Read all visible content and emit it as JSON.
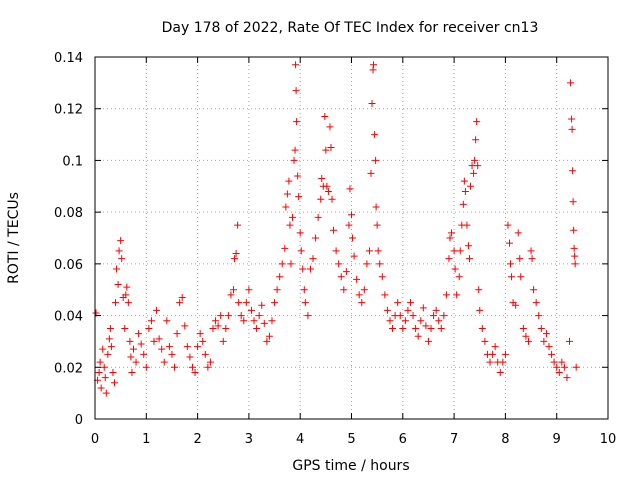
{
  "chart_data": {
    "type": "scatter",
    "title": "Day 178 of 2022, Rate Of TEC Index for receiver cn13",
    "xlabel": "GPS time / hours",
    "ylabel": "ROTI / TECUs",
    "xlim": [
      0,
      10
    ],
    "ylim": [
      0,
      0.14
    ],
    "xticks": [
      0,
      1,
      2,
      3,
      4,
      5,
      6,
      7,
      8,
      9,
      10
    ],
    "yticks": [
      0,
      0.02,
      0.04,
      0.06,
      0.08,
      0.1,
      0.12,
      0.14
    ],
    "xtick_labels": [
      "0",
      "1",
      "2",
      "3",
      "4",
      "5",
      "6",
      "7",
      "8",
      "9",
      "10"
    ],
    "ytick_labels": [
      "0",
      "0.02",
      "0.04",
      "0.06",
      "0.08",
      "0.1",
      "0.12",
      "0.14"
    ],
    "grid": true,
    "marker": "+",
    "color": "#ff0000",
    "series": [
      {
        "name": "ROTI",
        "points": [
          [
            0.02,
            0.041
          ],
          [
            0.05,
            0.015
          ],
          [
            0.08,
            0.018
          ],
          [
            0.1,
            0.022
          ],
          [
            0.12,
            0.012
          ],
          [
            0.15,
            0.027
          ],
          [
            0.18,
            0.02
          ],
          [
            0.2,
            0.016
          ],
          [
            0.22,
            0.01
          ],
          [
            0.25,
            0.025
          ],
          [
            0.28,
            0.031
          ],
          [
            0.3,
            0.035
          ],
          [
            0.32,
            0.028
          ],
          [
            0.35,
            0.018
          ],
          [
            0.38,
            0.014
          ],
          [
            0.4,
            0.045
          ],
          [
            0.42,
            0.058
          ],
          [
            0.45,
            0.052
          ],
          [
            0.47,
            0.065
          ],
          [
            0.5,
            0.069
          ],
          [
            0.52,
            0.062
          ],
          [
            0.55,
            0.047
          ],
          [
            0.58,
            0.035
          ],
          [
            0.6,
            0.048
          ],
          [
            0.62,
            0.051
          ],
          [
            0.65,
            0.045
          ],
          [
            0.68,
            0.03
          ],
          [
            0.7,
            0.024
          ],
          [
            0.72,
            0.018
          ],
          [
            0.75,
            0.027
          ],
          [
            0.8,
            0.022
          ],
          [
            0.85,
            0.033
          ],
          [
            0.9,
            0.029
          ],
          [
            0.95,
            0.025
          ],
          [
            1.0,
            0.02
          ],
          [
            1.05,
            0.035
          ],
          [
            1.1,
            0.038
          ],
          [
            1.15,
            0.03
          ],
          [
            1.2,
            0.042
          ],
          [
            1.25,
            0.031
          ],
          [
            1.3,
            0.027
          ],
          [
            1.35,
            0.022
          ],
          [
            1.4,
            0.038
          ],
          [
            1.45,
            0.028
          ],
          [
            1.5,
            0.025
          ],
          [
            1.55,
            0.02
          ],
          [
            1.6,
            0.033
          ],
          [
            1.65,
            0.045
          ],
          [
            1.7,
            0.047
          ],
          [
            1.75,
            0.036
          ],
          [
            1.8,
            0.028
          ],
          [
            1.85,
            0.024
          ],
          [
            1.9,
            0.02
          ],
          [
            1.95,
            0.018
          ],
          [
            2.0,
            0.028
          ],
          [
            2.05,
            0.033
          ],
          [
            2.1,
            0.03
          ],
          [
            2.15,
            0.025
          ],
          [
            2.2,
            0.02
          ],
          [
            2.25,
            0.022
          ],
          [
            2.3,
            0.035
          ],
          [
            2.35,
            0.038
          ],
          [
            2.4,
            0.036
          ],
          [
            2.45,
            0.04
          ],
          [
            2.5,
            0.03
          ],
          [
            2.55,
            0.035
          ],
          [
            2.6,
            0.04
          ],
          [
            2.65,
            0.048
          ],
          [
            2.7,
            0.05
          ],
          [
            2.72,
            0.062
          ],
          [
            2.75,
            0.064
          ],
          [
            2.78,
            0.075
          ],
          [
            2.8,
            0.045
          ],
          [
            2.85,
            0.04
          ],
          [
            2.9,
            0.038
          ],
          [
            2.95,
            0.045
          ],
          [
            3.0,
            0.05
          ],
          [
            3.05,
            0.042
          ],
          [
            3.1,
            0.038
          ],
          [
            3.15,
            0.035
          ],
          [
            3.2,
            0.04
          ],
          [
            3.25,
            0.044
          ],
          [
            3.3,
            0.037
          ],
          [
            3.35,
            0.03
          ],
          [
            3.4,
            0.032
          ],
          [
            3.45,
            0.038
          ],
          [
            3.5,
            0.045
          ],
          [
            3.55,
            0.05
          ],
          [
            3.6,
            0.055
          ],
          [
            3.65,
            0.06
          ],
          [
            3.7,
            0.066
          ],
          [
            3.72,
            0.082
          ],
          [
            3.75,
            0.087
          ],
          [
            3.78,
            0.092
          ],
          [
            3.8,
            0.075
          ],
          [
            3.82,
            0.06
          ],
          [
            3.85,
            0.078
          ],
          [
            3.88,
            0.1
          ],
          [
            3.9,
            0.104
          ],
          [
            3.91,
            0.137
          ],
          [
            3.92,
            0.127
          ],
          [
            3.93,
            0.115
          ],
          [
            3.95,
            0.094
          ],
          [
            3.97,
            0.086
          ],
          [
            4.0,
            0.072
          ],
          [
            4.02,
            0.065
          ],
          [
            4.05,
            0.058
          ],
          [
            4.08,
            0.05
          ],
          [
            4.1,
            0.045
          ],
          [
            4.15,
            0.04
          ],
          [
            4.2,
            0.058
          ],
          [
            4.25,
            0.062
          ],
          [
            4.3,
            0.07
          ],
          [
            4.35,
            0.078
          ],
          [
            4.4,
            0.085
          ],
          [
            4.42,
            0.093
          ],
          [
            4.45,
            0.09
          ],
          [
            4.48,
            0.117
          ],
          [
            4.5,
            0.104
          ],
          [
            4.52,
            0.09
          ],
          [
            4.55,
            0.088
          ],
          [
            4.58,
            0.113
          ],
          [
            4.6,
            0.105
          ],
          [
            4.62,
            0.085
          ],
          [
            4.65,
            0.073
          ],
          [
            4.7,
            0.065
          ],
          [
            4.75,
            0.06
          ],
          [
            4.8,
            0.055
          ],
          [
            4.85,
            0.05
          ],
          [
            4.9,
            0.057
          ],
          [
            4.95,
            0.075
          ],
          [
            4.97,
            0.089
          ],
          [
            5.0,
            0.079
          ],
          [
            5.02,
            0.07
          ],
          [
            5.05,
            0.063
          ],
          [
            5.1,
            0.054
          ],
          [
            5.15,
            0.048
          ],
          [
            5.2,
            0.045
          ],
          [
            5.25,
            0.05
          ],
          [
            5.3,
            0.06
          ],
          [
            5.35,
            0.065
          ],
          [
            5.38,
            0.095
          ],
          [
            5.4,
            0.122
          ],
          [
            5.42,
            0.135
          ],
          [
            5.43,
            0.137
          ],
          [
            5.45,
            0.11
          ],
          [
            5.47,
            0.1
          ],
          [
            5.48,
            0.082
          ],
          [
            5.5,
            0.075
          ],
          [
            5.52,
            0.065
          ],
          [
            5.55,
            0.06
          ],
          [
            5.6,
            0.055
          ],
          [
            5.65,
            0.048
          ],
          [
            5.7,
            0.042
          ],
          [
            5.75,
            0.038
          ],
          [
            5.8,
            0.035
          ],
          [
            5.85,
            0.04
          ],
          [
            5.9,
            0.045
          ],
          [
            5.95,
            0.04
          ],
          [
            6.0,
            0.035
          ],
          [
            6.05,
            0.038
          ],
          [
            6.1,
            0.042
          ],
          [
            6.15,
            0.045
          ],
          [
            6.2,
            0.04
          ],
          [
            6.25,
            0.035
          ],
          [
            6.3,
            0.032
          ],
          [
            6.35,
            0.038
          ],
          [
            6.4,
            0.043
          ],
          [
            6.45,
            0.036
          ],
          [
            6.5,
            0.03
          ],
          [
            6.55,
            0.035
          ],
          [
            6.6,
            0.04
          ],
          [
            6.65,
            0.042
          ],
          [
            6.7,
            0.038
          ],
          [
            6.75,
            0.035
          ],
          [
            6.8,
            0.04
          ],
          [
            6.85,
            0.048
          ],
          [
            6.9,
            0.062
          ],
          [
            6.92,
            0.07
          ],
          [
            6.95,
            0.072
          ],
          [
            7.0,
            0.065
          ],
          [
            7.02,
            0.058
          ],
          [
            7.05,
            0.048
          ],
          [
            7.1,
            0.055
          ],
          [
            7.12,
            0.065
          ],
          [
            7.15,
            0.075
          ],
          [
            7.18,
            0.083
          ],
          [
            7.2,
            0.092
          ],
          [
            7.22,
            0.088
          ],
          [
            7.25,
            0.075
          ],
          [
            7.28,
            0.067
          ],
          [
            7.3,
            0.062
          ],
          [
            7.32,
            0.09
          ],
          [
            7.35,
            0.098
          ],
          [
            7.38,
            0.095
          ],
          [
            7.4,
            0.1
          ],
          [
            7.42,
            0.108
          ],
          [
            7.44,
            0.115
          ],
          [
            7.46,
            0.098
          ],
          [
            7.48,
            0.05
          ],
          [
            7.5,
            0.042
          ],
          [
            7.55,
            0.035
          ],
          [
            7.6,
            0.03
          ],
          [
            7.65,
            0.025
          ],
          [
            7.7,
            0.022
          ],
          [
            7.75,
            0.025
          ],
          [
            7.8,
            0.028
          ],
          [
            7.85,
            0.022
          ],
          [
            7.9,
            0.018
          ],
          [
            7.95,
            0.022
          ],
          [
            8.0,
            0.025
          ],
          [
            8.05,
            0.075
          ],
          [
            8.08,
            0.068
          ],
          [
            8.1,
            0.06
          ],
          [
            8.12,
            0.055
          ],
          [
            8.15,
            0.045
          ],
          [
            8.2,
            0.044
          ],
          [
            8.25,
            0.072
          ],
          [
            8.28,
            0.062
          ],
          [
            8.3,
            0.055
          ],
          [
            8.35,
            0.035
          ],
          [
            8.4,
            0.032
          ],
          [
            8.45,
            0.03
          ],
          [
            8.5,
            0.065
          ],
          [
            8.52,
            0.062
          ],
          [
            8.55,
            0.05
          ],
          [
            8.6,
            0.045
          ],
          [
            8.65,
            0.04
          ],
          [
            8.7,
            0.035
          ],
          [
            8.75,
            0.03
          ],
          [
            8.8,
            0.033
          ],
          [
            8.85,
            0.028
          ],
          [
            8.9,
            0.025
          ],
          [
            8.95,
            0.022
          ],
          [
            9.0,
            0.02
          ],
          [
            9.05,
            0.018
          ],
          [
            9.1,
            0.022
          ],
          [
            9.15,
            0.02
          ],
          [
            9.2,
            0.016
          ],
          [
            9.25,
            0.03
          ],
          [
            9.27,
            0.13
          ],
          [
            9.29,
            0.116
          ],
          [
            9.3,
            0.112
          ],
          [
            9.31,
            0.096
          ],
          [
            9.32,
            0.084
          ],
          [
            9.33,
            0.073
          ],
          [
            9.34,
            0.066
          ],
          [
            9.35,
            0.063
          ],
          [
            9.36,
            0.06
          ],
          [
            9.38,
            0.02
          ]
        ]
      }
    ]
  }
}
